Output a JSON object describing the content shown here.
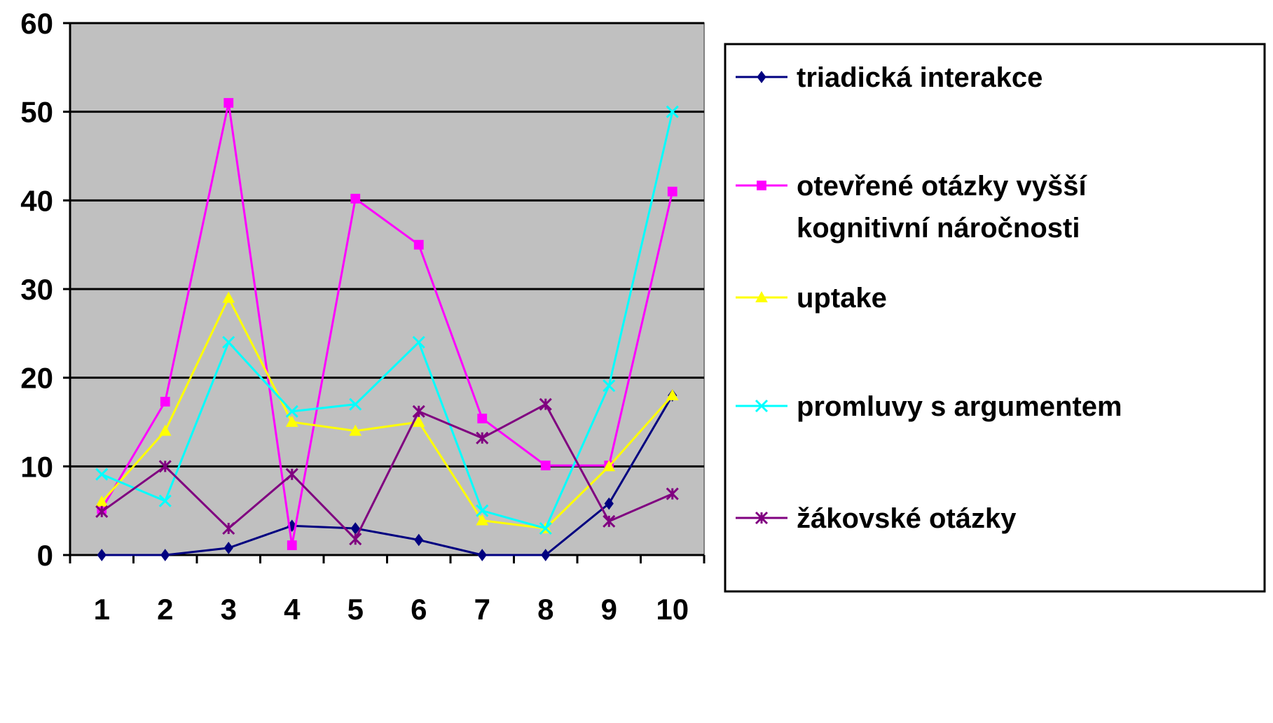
{
  "chart_data": {
    "type": "line",
    "title": "",
    "xlabel": "",
    "ylabel": "",
    "categories": [
      "1",
      "2",
      "3",
      "4",
      "5",
      "6",
      "7",
      "8",
      "9",
      "10"
    ],
    "ylim": [
      0,
      60
    ],
    "yticks": [
      0,
      10,
      20,
      30,
      40,
      50,
      60
    ],
    "grid": "horizontal",
    "plot_background": "#c0c0c0",
    "legend_position": "right",
    "series": [
      {
        "name": "triadická interakce",
        "color": "#000080",
        "marker": "diamond",
        "values": [
          0,
          0,
          0.8,
          3.3,
          3,
          1.7,
          0,
          0,
          5.8,
          18
        ]
      },
      {
        "name": "otevřené otázky vyšší kognitivní náročnosti",
        "color": "#ff00ff",
        "marker": "square",
        "values": [
          5.2,
          17.3,
          51,
          1.1,
          40.2,
          35,
          15.4,
          10.1,
          10.1,
          41
        ]
      },
      {
        "name": "uptake",
        "color": "#ffff00",
        "marker": "triangle",
        "values": [
          6,
          14,
          29,
          15,
          14,
          15,
          3.9,
          3,
          10,
          18
        ]
      },
      {
        "name": "promluvy s argumentem",
        "color": "#00ffff",
        "marker": "x",
        "values": [
          9.1,
          6.1,
          24,
          16.2,
          17,
          24,
          5,
          3,
          19.1,
          50
        ]
      },
      {
        "name": "žákovské otázky",
        "color": "#800080",
        "marker": "star",
        "values": [
          4.9,
          10,
          3,
          9.1,
          1.8,
          16.2,
          13.2,
          17,
          3.8,
          6.9
        ]
      }
    ]
  }
}
